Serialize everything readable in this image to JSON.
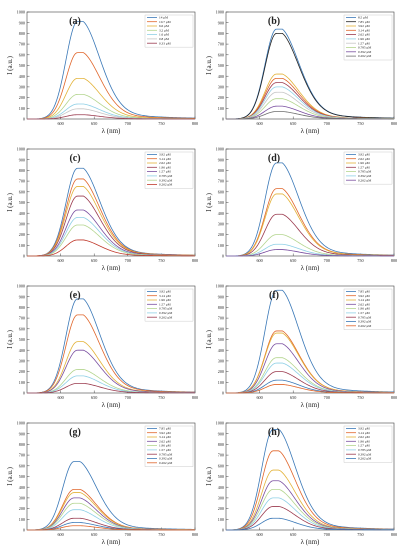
{
  "chart_data": [
    {
      "panel": "(a)",
      "type": "line",
      "x": [
        600,
        650,
        700,
        750,
        800
      ],
      "xlim": [
        550,
        800
      ],
      "ylim": [
        0,
        1000
      ],
      "xlabel": "λ (nm)",
      "ylabel": "I (a.u.)",
      "yticks": [
        0,
        100,
        200,
        300,
        400,
        500,
        600,
        700,
        800,
        900,
        1000
      ],
      "peak_nm": 625,
      "legend": "top-right",
      "grid": false,
      "series": [
        {
          "name": "14 μM",
          "peak": 910,
          "color": "#3a78b7"
        },
        {
          "name": "10.7 μM",
          "peak": 620,
          "color": "#e0662b"
        },
        {
          "name": "6.6 μM",
          "peak": 380,
          "color": "#e3b33a"
        },
        {
          "name": "3.2 μM",
          "peak": 230,
          "color": "#b4d58f"
        },
        {
          "name": "1.6 μM",
          "peak": 140,
          "color": "#8fd0e6"
        },
        {
          "name": "0.8 μM",
          "peak": 95,
          "color": "#c6c6c6"
        },
        {
          "name": "0.33 μM",
          "peak": 40,
          "color": "#9b3b4f"
        }
      ]
    },
    {
      "panel": "(b)",
      "type": "line",
      "x": [
        600,
        650,
        700,
        750,
        800
      ],
      "xlim": [
        550,
        800
      ],
      "ylim": [
        0,
        1000
      ],
      "xlabel": "λ (nm)",
      "ylabel": "I (a.u.)",
      "yticks": [
        0,
        100,
        200,
        300,
        400,
        500,
        600,
        700,
        800,
        900,
        1000
      ],
      "peak_nm": 625,
      "legend": "top-right",
      "grid": false,
      "series": [
        {
          "name": "8.5 μM",
          "peak": 840,
          "color": "#3a78b7"
        },
        {
          "name": "7.85 μM",
          "peak": 800,
          "color": "#222222"
        },
        {
          "name": "3.92 μM",
          "peak": 420,
          "color": "#e3b33a"
        },
        {
          "name": "3.14 μM",
          "peak": 380,
          "color": "#e0662b"
        },
        {
          "name": "2.62 μM",
          "peak": 340,
          "color": "#9b3b4f"
        },
        {
          "name": "1.96 μM",
          "peak": 300,
          "color": "#8fd0e6"
        },
        {
          "name": "1.57 μM",
          "peak": 250,
          "color": "#c6c6c6"
        },
        {
          "name": "0.785 μM",
          "peak": 190,
          "color": "#b4d58f"
        },
        {
          "name": "0.392 μM",
          "peak": 120,
          "color": "#7a4fa0"
        },
        {
          "name": "0.262 μM",
          "peak": 70,
          "color": "#6f6f6f"
        }
      ]
    },
    {
      "panel": "(c)",
      "type": "line",
      "x": [
        600,
        650,
        700,
        750,
        800
      ],
      "xlim": [
        550,
        800
      ],
      "ylim": [
        0,
        1000
      ],
      "xlabel": "λ (nm)",
      "ylabel": "I (a.u.)",
      "yticks": [
        0,
        100,
        200,
        300,
        400,
        500,
        600,
        700,
        800,
        900,
        1000
      ],
      "peak_nm": 625,
      "legend": "top-right",
      "grid": false,
      "series": [
        {
          "name": "3.92 μM",
          "peak": 820,
          "color": "#3a78b7"
        },
        {
          "name": "3.14 μM",
          "peak": 720,
          "color": "#e0662b"
        },
        {
          "name": "2.62 μM",
          "peak": 650,
          "color": "#e3b33a"
        },
        {
          "name": "1.96 μM",
          "peak": 560,
          "color": "#9b3b4f"
        },
        {
          "name": "1.57 μM",
          "peak": 430,
          "color": "#7a4fa0"
        },
        {
          "name": "0.785 μM",
          "peak": 360,
          "color": "#8fd0e6"
        },
        {
          "name": "0.392 μM",
          "peak": 290,
          "color": "#b4d58f"
        },
        {
          "name": "0.262 μM",
          "peak": 150,
          "color": "#c0392b"
        }
      ]
    },
    {
      "panel": "(d)",
      "type": "line",
      "x": [
        600,
        650,
        700,
        750,
        800
      ],
      "xlim": [
        550,
        800
      ],
      "ylim": [
        0,
        1000
      ],
      "xlabel": "λ (nm)",
      "ylabel": "I (a.u.)",
      "yticks": [
        0,
        100,
        200,
        300,
        400,
        500,
        600,
        700,
        800,
        900,
        1000
      ],
      "peak_nm": 625,
      "legend": "top-right",
      "grid": false,
      "series": [
        {
          "name": "3.92 μM",
          "peak": 870,
          "color": "#3a78b7"
        },
        {
          "name": "2.62 μM",
          "peak": 630,
          "color": "#e0662b"
        },
        {
          "name": "1.96 μM",
          "peak": 580,
          "color": "#e3b33a"
        },
        {
          "name": "1.57 μM",
          "peak": 390,
          "color": "#9b3b4f"
        },
        {
          "name": "0.785 μM",
          "peak": 200,
          "color": "#b4d58f"
        },
        {
          "name": "0.392 μM",
          "peak": 110,
          "color": "#8fd0e6"
        },
        {
          "name": "0.262 μM",
          "peak": 60,
          "color": "#7a4fa0"
        }
      ]
    },
    {
      "panel": "(e)",
      "type": "line",
      "x": [
        600,
        650,
        700,
        750,
        800
      ],
      "xlim": [
        550,
        800
      ],
      "ylim": [
        0,
        1000
      ],
      "xlabel": "λ (nm)",
      "ylabel": "I (a.u.)",
      "yticks": [
        0,
        100,
        200,
        300,
        400,
        500,
        600,
        700,
        800,
        900,
        1000
      ],
      "peak_nm": 625,
      "legend": "top-right",
      "grid": false,
      "series": [
        {
          "name": "3.92 μM",
          "peak": 880,
          "color": "#3a78b7"
        },
        {
          "name": "3.14 μM",
          "peak": 730,
          "color": "#e0662b"
        },
        {
          "name": "1.96 μM",
          "peak": 480,
          "color": "#e3b33a"
        },
        {
          "name": "1.57 μM",
          "peak": 400,
          "color": "#7a4fa0"
        },
        {
          "name": "0.785 μM",
          "peak": 220,
          "color": "#b4d58f"
        },
        {
          "name": "0.392 μM",
          "peak": 160,
          "color": "#8fd0e6"
        },
        {
          "name": "0.262 μM",
          "peak": 90,
          "color": "#9b3b4f"
        }
      ]
    },
    {
      "panel": "(f)",
      "type": "line",
      "x": [
        600,
        650,
        700,
        750,
        800
      ],
      "xlim": [
        550,
        800
      ],
      "ylim": [
        0,
        1000
      ],
      "xlabel": "λ (nm)",
      "ylabel": "I (a.u.)",
      "yticks": [
        0,
        100,
        200,
        300,
        400,
        500,
        600,
        700,
        800,
        900,
        1000
      ],
      "peak_nm": 625,
      "legend": "top-right",
      "grid": false,
      "series": [
        {
          "name": "7.85 μM",
          "peak": 960,
          "color": "#3a78b7"
        },
        {
          "name": "3.92 μM",
          "peak": 580,
          "color": "#e0662b"
        },
        {
          "name": "3.14 μM",
          "peak": 560,
          "color": "#e3b33a"
        },
        {
          "name": "2.62 μM",
          "peak": 460,
          "color": "#7a4fa0"
        },
        {
          "name": "1.96 μM",
          "peak": 330,
          "color": "#b4d58f"
        },
        {
          "name": "1.57 μM",
          "peak": 280,
          "color": "#8fd0e6"
        },
        {
          "name": "0.785 μM",
          "peak": 200,
          "color": "#9b3b4f"
        },
        {
          "name": "0.392 μM",
          "peak": 120,
          "color": "#3a78b7"
        },
        {
          "name": "0.262 μM",
          "peak": 80,
          "color": "#e0662b"
        }
      ]
    },
    {
      "panel": "(g)",
      "type": "line",
      "x": [
        600,
        650,
        700,
        750,
        800
      ],
      "xlim": [
        550,
        800
      ],
      "ylim": [
        0,
        1000
      ],
      "xlabel": "λ (nm)",
      "ylabel": "I (a.u.)",
      "yticks": [
        0,
        100,
        200,
        300,
        400,
        500,
        600,
        700,
        800,
        900,
        1000
      ],
      "peak_nm": 620,
      "legend": "top-right",
      "grid": false,
      "series": [
        {
          "name": "7.85 μM",
          "peak": 640,
          "color": "#3a78b7"
        },
        {
          "name": "3.92 μM",
          "peak": 380,
          "color": "#e0662b"
        },
        {
          "name": "3.14 μM",
          "peak": 350,
          "color": "#e3b33a"
        },
        {
          "name": "2.62 μM",
          "peak": 300,
          "color": "#7a4fa0"
        },
        {
          "name": "1.96 μM",
          "peak": 250,
          "color": "#b4d58f"
        },
        {
          "name": "1.57 μM",
          "peak": 190,
          "color": "#8fd0e6"
        },
        {
          "name": "0.785 μM",
          "peak": 110,
          "color": "#9b3b4f"
        },
        {
          "name": "0.392 μM",
          "peak": 70,
          "color": "#3a78b7"
        },
        {
          "name": "0.262 μM",
          "peak": 40,
          "color": "#e0662b"
        }
      ]
    },
    {
      "panel": "(h)",
      "type": "line",
      "x": [
        600,
        650,
        700,
        750,
        800
      ],
      "xlim": [
        550,
        800
      ],
      "ylim": [
        0,
        1000
      ],
      "xlabel": "λ (nm)",
      "ylabel": "I (a.u.)",
      "yticks": [
        0,
        100,
        200,
        300,
        400,
        500,
        600,
        700,
        800,
        900,
        1000
      ],
      "peak_nm": 620,
      "legend": "top-right",
      "grid": false,
      "series": [
        {
          "name": "3.92 μM",
          "peak": 940,
          "color": "#3a78b7"
        },
        {
          "name": "3.14 μM",
          "peak": 740,
          "color": "#e0662b"
        },
        {
          "name": "2.62 μM",
          "peak": 560,
          "color": "#e3b33a"
        },
        {
          "name": "1.96 μM",
          "peak": 460,
          "color": "#7a4fa0"
        },
        {
          "name": "1.57 μM",
          "peak": 380,
          "color": "#b4d58f"
        },
        {
          "name": "0.785 μM",
          "peak": 300,
          "color": "#8fd0e6"
        },
        {
          "name": "0.392 μM",
          "peak": 220,
          "color": "#9b3b4f"
        },
        {
          "name": "0.262 μM",
          "peak": 110,
          "color": "#3a78b7"
        }
      ]
    }
  ]
}
